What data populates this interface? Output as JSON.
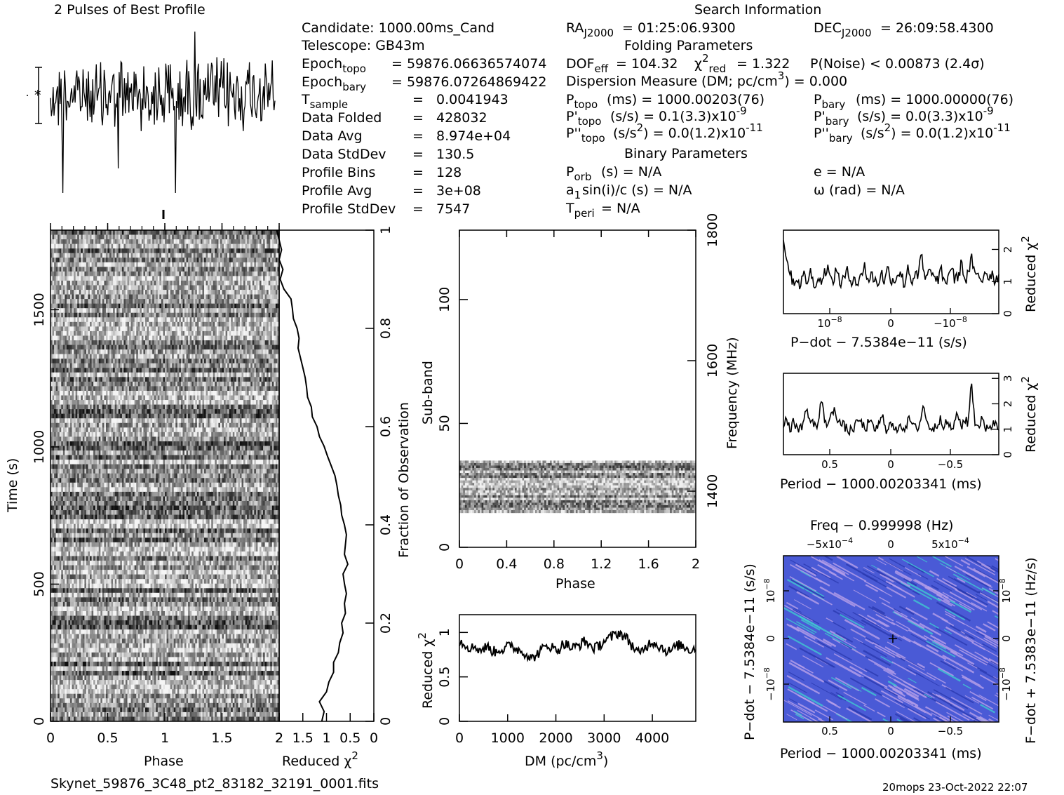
{
  "top_left_title": "2 Pulses of Best Profile",
  "search_title": "Search Information",
  "folding_title": "Folding Parameters",
  "binary_title": "Binary Parameters",
  "candidate": "Candidate:  1000.00ms_Cand",
  "telescope": "Telescope:  GB43m",
  "epoch_topo": "= 59876.06636574074",
  "epoch_bary": "= 59876.07264869422",
  "info_rows": [
    {
      "label": "T",
      "sub": "sample",
      "eq": "=",
      "value": "0.0041943"
    },
    {
      "label": "Data Folded",
      "sub": "",
      "eq": "=",
      "value": "428032"
    },
    {
      "label": "Data Avg",
      "sub": "",
      "eq": "=",
      "value": "8.974e+04"
    },
    {
      "label": "Data StdDev",
      "sub": "",
      "eq": "=",
      "value": "130.5"
    },
    {
      "label": "Profile Bins",
      "sub": "",
      "eq": "=",
      "value": "128"
    },
    {
      "label": "Profile Avg",
      "sub": "",
      "eq": "=",
      "value": "3e+08"
    },
    {
      "label": "Profile StdDev",
      "sub": "",
      "eq": "=",
      "value": "7547"
    }
  ],
  "ra": "= 01:25:06.9300",
  "dec": "= 26:09:58.4300",
  "dof": "= 104.32",
  "chi2red": "= 1.322",
  "pnoise": "P(Noise) < 0.00873   (2.4σ)",
  "dm_line": "Dispersion Measure (DM; pc/cm",
  "dm_line_end": ") = 0.000",
  "p_topo": "(ms) =  1000.00203(76)",
  "p_bary": "(ms) =  1000.00000(76)",
  "pd_topo": "(s/s) =  0.1(3.3)x10",
  "pd_bary": "(s/s) = 0.0(3.3)x10",
  "pd_exp": "-9",
  "pdd_topo": "(s/s",
  "pdd_topo_end": ") = 0.0(1.2)x10",
  "pdd_bary_end": ") = 0.0(1.2)x10",
  "pdd_exp": "-11",
  "porb": "(s) = N/A",
  "ecc": "e = N/A",
  "a1": "sin(i)/c (s) = N/A",
  "omega": "ω (rad) = N/A",
  "tperi": "= N/A",
  "footer_file": "Skynet_59876_3C48_pt2_83182_32191_0001.fits",
  "footer_stamp": "20mops 23-Oct-2022 22:07",
  "colors": {
    "ink": "#000000",
    "ppdot_bg": "#4a5ad6",
    "ppdot_hi": "#b8a0e8",
    "ppdot_cyan": "#40c8d0"
  },
  "chart_data": [
    {
      "type": "line",
      "name": "pulse_profile",
      "title": "2 Pulses of Best Profile",
      "xlim": [
        0,
        2
      ],
      "note_error_bar": true
    },
    {
      "type": "heatmap",
      "name": "time_vs_phase",
      "xlabel": "Phase",
      "ylabel": "Time (s)",
      "xlim": [
        0,
        2
      ],
      "ylim": [
        0,
        1790
      ],
      "x_ticks": [
        "0",
        "0.5",
        "1",
        "1.5",
        "2"
      ],
      "y_ticks": [
        "0",
        "500",
        "1000",
        "1500"
      ],
      "colormap": "gray"
    },
    {
      "type": "line",
      "name": "reduced_chi2_vs_time",
      "xlabel": "Reduced χ",
      "xlabel_sup": "2",
      "ylabel": "Fraction of Observation",
      "x_ticks": [
        "2",
        "1.5",
        "1",
        "0.5",
        "0"
      ],
      "y_ticks": [
        "0",
        "0.2",
        "0.4",
        "0.6",
        "0.8",
        "1"
      ],
      "x": [
        1.1,
        1.05,
        1.15,
        1.0,
        0.95,
        0.85,
        0.85,
        0.75,
        0.72,
        0.65,
        0.68,
        0.6,
        0.62,
        0.58,
        0.62,
        0.65,
        0.55,
        0.62,
        0.6,
        0.58,
        0.62,
        0.68,
        0.7,
        0.75,
        0.78,
        0.82,
        0.9,
        0.98,
        1.05,
        1.15,
        1.2,
        1.3,
        1.32,
        1.4,
        1.42,
        1.45,
        1.5,
        1.55,
        1.6,
        1.58,
        1.62,
        1.7,
        1.72,
        1.75,
        1.9,
        1.98,
        1.92,
        2.0,
        1.95,
        2.05
      ],
      "y": [
        0.0,
        0.02,
        0.04,
        0.06,
        0.08,
        0.1,
        0.12,
        0.14,
        0.16,
        0.18,
        0.2,
        0.22,
        0.24,
        0.26,
        0.28,
        0.3,
        0.32,
        0.34,
        0.36,
        0.38,
        0.4,
        0.42,
        0.44,
        0.46,
        0.48,
        0.5,
        0.52,
        0.54,
        0.56,
        0.58,
        0.6,
        0.62,
        0.64,
        0.66,
        0.68,
        0.7,
        0.72,
        0.74,
        0.76,
        0.78,
        0.8,
        0.82,
        0.84,
        0.86,
        0.88,
        0.9,
        0.92,
        0.94,
        0.96,
        1.0
      ]
    },
    {
      "type": "heatmap",
      "name": "subband_vs_phase",
      "xlabel": "Phase",
      "ylabel": "Sub-band",
      "ylabel_right": "Frequency (MHz)",
      "xlim": [
        0,
        2
      ],
      "ylim": [
        0,
        128
      ],
      "x_ticks": [
        "0",
        "0.4",
        "0.8",
        "1.2",
        "1.6",
        "2"
      ],
      "y_ticks": [
        "0",
        "50",
        "100"
      ],
      "y_right_ticks": [
        "1400",
        "1600",
        "1800"
      ],
      "band_range": [
        14,
        35
      ],
      "colormap": "gray"
    },
    {
      "type": "line",
      "name": "reduced_chi2_vs_dm",
      "xlabel": "DM (pc/cm",
      "xlabel_sup": "3",
      "xlabel_end": ")",
      "ylabel": "Reduced χ",
      "ylabel_sup": "2",
      "xlim": [
        0,
        4900
      ],
      "ylim": [
        0,
        1.2
      ],
      "x_ticks": [
        "0",
        "1000",
        "2000",
        "3000",
        "4000"
      ],
      "y_ticks": [
        "0",
        "0.5",
        "1"
      ],
      "y_points": [
        0.9,
        0.88,
        0.85,
        0.82,
        0.85,
        0.8,
        0.82,
        0.84,
        0.8,
        0.78,
        0.82,
        0.8,
        0.84,
        0.86,
        0.82,
        0.8,
        0.78,
        0.75,
        0.7,
        0.74,
        0.78,
        0.82,
        0.86,
        0.84,
        0.8,
        0.82,
        0.88,
        0.86,
        0.82,
        0.84,
        0.86,
        0.9,
        0.88,
        0.84,
        0.82,
        0.86,
        0.9,
        0.92,
        0.95,
        0.98,
        1.0,
        0.96,
        0.92,
        0.86,
        0.8,
        0.75,
        0.82,
        0.86,
        0.9,
        0.88,
        0.84,
        0.82,
        0.78,
        0.8,
        0.84,
        0.86,
        0.84,
        0.82,
        0.8,
        0.84
      ]
    },
    {
      "type": "line",
      "name": "reduced_chi2_vs_pdot",
      "xlabel": "P-dot − 7.5384e-11 (s/s)",
      "ylabel": "Reduced χ",
      "ylabel_sup": "2",
      "x_ticks": [
        "10",
        "0",
        "−10"
      ],
      "x_tick_exp": "−8",
      "y_ticks": [
        "0",
        "1",
        "2"
      ],
      "ylim": [
        0,
        2.6
      ],
      "y_points": [
        2.2,
        1.8,
        1.2,
        1.0,
        1.1,
        0.9,
        1.2,
        1.0,
        1.3,
        0.9,
        1.1,
        1.0,
        1.2,
        1.5,
        1.0,
        1.1,
        1.4,
        0.9,
        1.1,
        1.3,
        1.0,
        1.2,
        0.9,
        1.1,
        1.6,
        1.0,
        1.2,
        1.1,
        0.9,
        1.3,
        1.0,
        1.4,
        1.1,
        1.0,
        1.3,
        1.2,
        0.9,
        1.5,
        1.0,
        1.2,
        1.1,
        1.9,
        1.0,
        1.2,
        1.4,
        1.0,
        1.1,
        1.3,
        0.9,
        1.2,
        1.5,
        1.0,
        1.2,
        1.6,
        1.0,
        1.3,
        1.7,
        1.1,
        1.2,
        1.0,
        1.4,
        1.1,
        1.3,
        1.0,
        1.2
      ]
    },
    {
      "type": "line",
      "name": "reduced_chi2_vs_period",
      "xlabel": "Period − 1000.00203341 (ms)",
      "ylabel": "Reduced χ",
      "ylabel_sup": "2",
      "x_ticks": [
        "0.5",
        "0",
        "−0.5"
      ],
      "y_ticks": [
        "0",
        "1",
        "2",
        "3"
      ],
      "ylim": [
        0,
        3.2
      ],
      "y_points": [
        1.2,
        1.5,
        0.9,
        1.3,
        1.1,
        1.0,
        1.4,
        1.8,
        1.2,
        1.3,
        1.0,
        2.2,
        1.4,
        1.2,
        1.5,
        1.9,
        1.3,
        1.2,
        1.1,
        0.9,
        1.0,
        1.1,
        1.4,
        1.2,
        1.0,
        1.3,
        1.1,
        1.0,
        1.2,
        1.5,
        1.0,
        1.2,
        1.1,
        0.9,
        1.3,
        1.0,
        1.2,
        1.4,
        1.1,
        1.0,
        1.3,
        2.0,
        1.2,
        1.1,
        1.0,
        1.2,
        1.5,
        1.1,
        1.3,
        1.0,
        1.2,
        1.6,
        1.1,
        1.4,
        1.2,
        2.9,
        1.3,
        1.1,
        1.4,
        1.0,
        1.2,
        1.1,
        1.3,
        1.0
      ]
    },
    {
      "type": "heatmap",
      "name": "period_pdot_plane",
      "title": "Freq − 0.999998 (Hz)",
      "xlabel": "Period − 1000.00203341 (ms)",
      "ylabel": "P-dot − 7.5384e-11 (s/s)",
      "ylabel_right": "F-dot + 7.5383e-11 (Hz/s)",
      "x_ticks": [
        "0.5",
        "0",
        "−0.5"
      ],
      "x_top_ticks": [
        "−5x10",
        "0",
        "5x10"
      ],
      "x_top_exp": "−4",
      "y_ticks": [
        "10",
        "0",
        "−10"
      ],
      "y_tick_exp": "−8",
      "y_right_ticks": [
        "−10",
        "0",
        "10"
      ],
      "y_right_exp": "−8"
    }
  ]
}
